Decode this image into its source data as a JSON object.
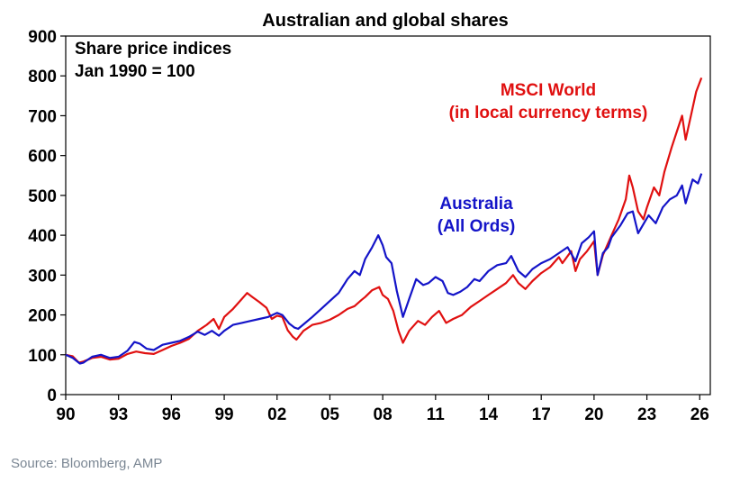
{
  "chart_data": {
    "type": "line",
    "title": "Australian and global shares",
    "annotation_lines": [
      "Share price indices",
      "Jan 1990 = 100"
    ],
    "x_tick_labels": [
      "90",
      "93",
      "96",
      "99",
      "02",
      "05",
      "08",
      "11",
      "14",
      "17",
      "20",
      "23",
      "26"
    ],
    "x_ticks": [
      1990,
      1993,
      1996,
      1999,
      2002,
      2005,
      2008,
      2011,
      2014,
      2017,
      2020,
      2023,
      2026
    ],
    "xlim": [
      1990,
      2026.6
    ],
    "ylim": [
      0,
      900
    ],
    "y_ticks": [
      0,
      100,
      200,
      300,
      400,
      500,
      600,
      700,
      800,
      900
    ],
    "grid": false,
    "series": [
      {
        "name": "MSCI World",
        "label_lines": [
          "MSCI World",
          "(in local currency terms)"
        ],
        "color": "#e01010",
        "points": [
          [
            1990.0,
            100
          ],
          [
            1990.4,
            96
          ],
          [
            1990.75,
            80
          ],
          [
            1991.0,
            83
          ],
          [
            1991.5,
            92
          ],
          [
            1992.0,
            95
          ],
          [
            1992.5,
            88
          ],
          [
            1993.0,
            90
          ],
          [
            1993.5,
            102
          ],
          [
            1994.0,
            108
          ],
          [
            1994.5,
            104
          ],
          [
            1995.0,
            102
          ],
          [
            1995.5,
            112
          ],
          [
            1996.0,
            122
          ],
          [
            1996.5,
            130
          ],
          [
            1997.0,
            140
          ],
          [
            1997.5,
            160
          ],
          [
            1998.0,
            175
          ],
          [
            1998.4,
            190
          ],
          [
            1998.7,
            165
          ],
          [
            1999.0,
            195
          ],
          [
            1999.5,
            215
          ],
          [
            2000.0,
            240
          ],
          [
            2000.3,
            255
          ],
          [
            2000.6,
            245
          ],
          [
            2001.0,
            232
          ],
          [
            2001.4,
            218
          ],
          [
            2001.7,
            190
          ],
          [
            2002.0,
            198
          ],
          [
            2002.3,
            195
          ],
          [
            2002.6,
            162
          ],
          [
            2002.9,
            145
          ],
          [
            2003.1,
            138
          ],
          [
            2003.5,
            160
          ],
          [
            2004.0,
            175
          ],
          [
            2004.5,
            180
          ],
          [
            2005.0,
            188
          ],
          [
            2005.5,
            200
          ],
          [
            2006.0,
            215
          ],
          [
            2006.4,
            222
          ],
          [
            2006.8,
            238
          ],
          [
            2007.0,
            245
          ],
          [
            2007.4,
            262
          ],
          [
            2007.8,
            270
          ],
          [
            2008.0,
            250
          ],
          [
            2008.3,
            240
          ],
          [
            2008.6,
            210
          ],
          [
            2008.9,
            160
          ],
          [
            2009.15,
            130
          ],
          [
            2009.5,
            160
          ],
          [
            2010.0,
            185
          ],
          [
            2010.4,
            175
          ],
          [
            2010.8,
            195
          ],
          [
            2011.2,
            210
          ],
          [
            2011.6,
            180
          ],
          [
            2012.0,
            190
          ],
          [
            2012.5,
            200
          ],
          [
            2013.0,
            220
          ],
          [
            2013.5,
            235
          ],
          [
            2014.0,
            250
          ],
          [
            2014.5,
            265
          ],
          [
            2015.0,
            280
          ],
          [
            2015.4,
            300
          ],
          [
            2015.7,
            280
          ],
          [
            2016.1,
            265
          ],
          [
            2016.5,
            285
          ],
          [
            2017.0,
            305
          ],
          [
            2017.5,
            320
          ],
          [
            2018.0,
            345
          ],
          [
            2018.2,
            330
          ],
          [
            2018.7,
            360
          ],
          [
            2018.95,
            310
          ],
          [
            2019.2,
            340
          ],
          [
            2019.6,
            360
          ],
          [
            2020.0,
            385
          ],
          [
            2020.2,
            300
          ],
          [
            2020.5,
            350
          ],
          [
            2020.8,
            380
          ],
          [
            2021.0,
            400
          ],
          [
            2021.4,
            440
          ],
          [
            2021.8,
            490
          ],
          [
            2022.0,
            550
          ],
          [
            2022.2,
            520
          ],
          [
            2022.5,
            460
          ],
          [
            2022.8,
            440
          ],
          [
            2023.0,
            470
          ],
          [
            2023.4,
            520
          ],
          [
            2023.7,
            500
          ],
          [
            2024.0,
            560
          ],
          [
            2024.4,
            620
          ],
          [
            2024.7,
            660
          ],
          [
            2025.0,
            700
          ],
          [
            2025.2,
            640
          ],
          [
            2025.5,
            700
          ],
          [
            2025.8,
            760
          ],
          [
            2026.1,
            795
          ]
        ]
      },
      {
        "name": "Australia (All Ords)",
        "label_lines": [
          "Australia",
          "(All Ords)"
        ],
        "color": "#1414c8",
        "points": [
          [
            1990.0,
            100
          ],
          [
            1990.4,
            92
          ],
          [
            1990.8,
            78
          ],
          [
            1991.0,
            80
          ],
          [
            1991.5,
            95
          ],
          [
            1992.0,
            100
          ],
          [
            1992.5,
            92
          ],
          [
            1993.0,
            95
          ],
          [
            1993.5,
            110
          ],
          [
            1993.9,
            132
          ],
          [
            1994.2,
            128
          ],
          [
            1994.6,
            115
          ],
          [
            1995.0,
            112
          ],
          [
            1995.5,
            125
          ],
          [
            1996.0,
            130
          ],
          [
            1996.5,
            135
          ],
          [
            1997.0,
            145
          ],
          [
            1997.5,
            158
          ],
          [
            1997.9,
            150
          ],
          [
            1998.3,
            160
          ],
          [
            1998.7,
            148
          ],
          [
            1999.0,
            160
          ],
          [
            1999.5,
            175
          ],
          [
            2000.0,
            180
          ],
          [
            2000.5,
            185
          ],
          [
            2001.0,
            190
          ],
          [
            2001.5,
            195
          ],
          [
            2002.0,
            205
          ],
          [
            2002.3,
            200
          ],
          [
            2002.7,
            178
          ],
          [
            2003.0,
            168
          ],
          [
            2003.2,
            165
          ],
          [
            2003.6,
            180
          ],
          [
            2004.0,
            195
          ],
          [
            2004.5,
            215
          ],
          [
            2005.0,
            235
          ],
          [
            2005.5,
            255
          ],
          [
            2006.0,
            290
          ],
          [
            2006.4,
            310
          ],
          [
            2006.7,
            300
          ],
          [
            2007.0,
            340
          ],
          [
            2007.4,
            370
          ],
          [
            2007.75,
            400
          ],
          [
            2008.0,
            375
          ],
          [
            2008.2,
            345
          ],
          [
            2008.5,
            330
          ],
          [
            2008.8,
            260
          ],
          [
            2009.15,
            195
          ],
          [
            2009.5,
            240
          ],
          [
            2009.9,
            290
          ],
          [
            2010.3,
            275
          ],
          [
            2010.6,
            280
          ],
          [
            2011.0,
            295
          ],
          [
            2011.4,
            285
          ],
          [
            2011.7,
            255
          ],
          [
            2012.0,
            250
          ],
          [
            2012.4,
            258
          ],
          [
            2012.8,
            270
          ],
          [
            2013.2,
            290
          ],
          [
            2013.5,
            285
          ],
          [
            2014.0,
            310
          ],
          [
            2014.5,
            325
          ],
          [
            2015.0,
            330
          ],
          [
            2015.3,
            348
          ],
          [
            2015.7,
            310
          ],
          [
            2016.1,
            295
          ],
          [
            2016.5,
            315
          ],
          [
            2017.0,
            330
          ],
          [
            2017.5,
            340
          ],
          [
            2018.0,
            355
          ],
          [
            2018.5,
            370
          ],
          [
            2018.95,
            335
          ],
          [
            2019.3,
            380
          ],
          [
            2019.7,
            395
          ],
          [
            2020.0,
            410
          ],
          [
            2020.2,
            300
          ],
          [
            2020.5,
            355
          ],
          [
            2020.8,
            370
          ],
          [
            2021.0,
            395
          ],
          [
            2021.5,
            425
          ],
          [
            2021.9,
            455
          ],
          [
            2022.2,
            460
          ],
          [
            2022.5,
            405
          ],
          [
            2022.9,
            435
          ],
          [
            2023.1,
            450
          ],
          [
            2023.5,
            430
          ],
          [
            2023.9,
            470
          ],
          [
            2024.3,
            490
          ],
          [
            2024.7,
            500
          ],
          [
            2025.0,
            525
          ],
          [
            2025.2,
            480
          ],
          [
            2025.6,
            540
          ],
          [
            2025.9,
            530
          ],
          [
            2026.1,
            555
          ]
        ]
      }
    ]
  },
  "source": "Source: Bloomberg, AMP"
}
